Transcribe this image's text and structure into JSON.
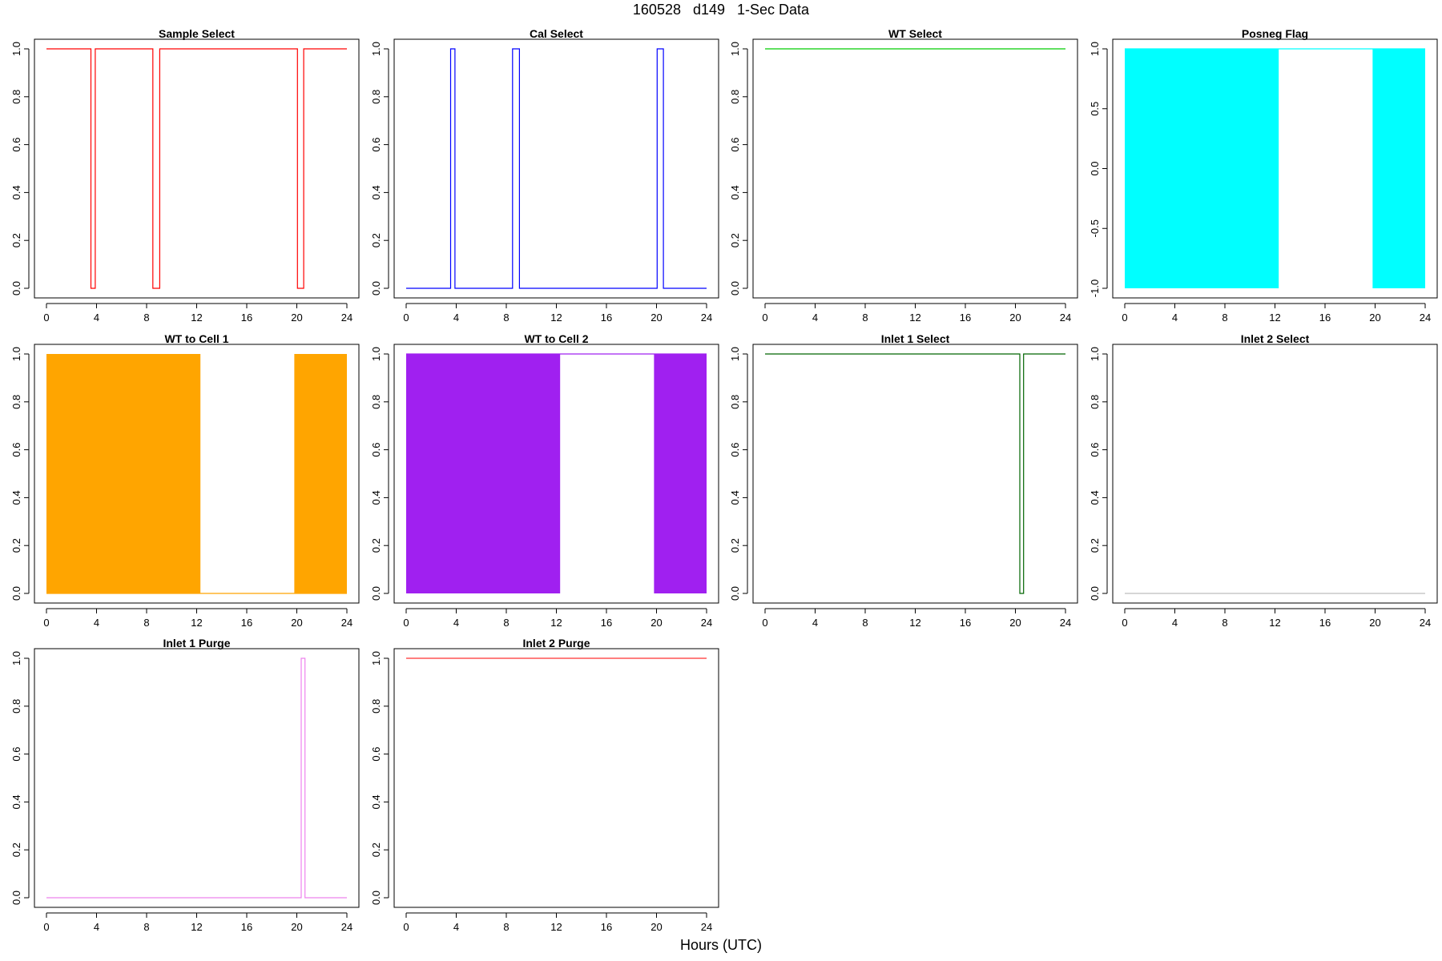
{
  "figure": {
    "title": "160528   d149   1-Sec Data",
    "xlabel": "Hours (UTC)"
  },
  "chart_data": [
    {
      "type": "line",
      "title": "Sample Select",
      "color": "#ff0000",
      "fill": false,
      "xlim": [
        0,
        24
      ],
      "ylim": [
        0,
        1
      ],
      "yticks": [
        0,
        0.2,
        0.4,
        0.6,
        0.8,
        1
      ],
      "yticklabels": [
        "0.0",
        "0.2",
        "0.4",
        "0.6",
        "0.8",
        "1.0"
      ],
      "xticks": [
        0,
        4,
        8,
        12,
        16,
        20,
        24
      ],
      "x": [
        0,
        3.55,
        3.55,
        3.9,
        3.9,
        8.5,
        8.5,
        9.05,
        9.05,
        20.05,
        20.05,
        20.55,
        20.55,
        24
      ],
      "y": [
        1,
        1,
        0,
        0,
        1,
        1,
        0,
        0,
        1,
        1,
        0,
        0,
        1,
        1
      ]
    },
    {
      "type": "line",
      "title": "Cal Select",
      "color": "#0000ff",
      "fill": false,
      "xlim": [
        0,
        24
      ],
      "ylim": [
        0,
        1
      ],
      "yticks": [
        0,
        0.2,
        0.4,
        0.6,
        0.8,
        1
      ],
      "yticklabels": [
        "0.0",
        "0.2",
        "0.4",
        "0.6",
        "0.8",
        "1.0"
      ],
      "xticks": [
        0,
        4,
        8,
        12,
        16,
        20,
        24
      ],
      "x": [
        0,
        3.55,
        3.55,
        3.9,
        3.9,
        8.5,
        8.5,
        9.05,
        9.05,
        20.05,
        20.05,
        20.55,
        20.55,
        24
      ],
      "y": [
        0,
        0,
        1,
        1,
        0,
        0,
        1,
        1,
        0,
        0,
        1,
        1,
        0,
        0
      ]
    },
    {
      "type": "line",
      "title": "WT Select",
      "color": "#00cd00",
      "fill": false,
      "xlim": [
        0,
        24
      ],
      "ylim": [
        0,
        1
      ],
      "yticks": [
        0,
        0.2,
        0.4,
        0.6,
        0.8,
        1
      ],
      "yticklabels": [
        "0.0",
        "0.2",
        "0.4",
        "0.6",
        "0.8",
        "1.0"
      ],
      "xticks": [
        0,
        4,
        8,
        12,
        16,
        20,
        24
      ],
      "x": [
        0,
        24
      ],
      "y": [
        1,
        1
      ]
    },
    {
      "type": "area",
      "title": "Posneg Flag",
      "color": "#00ffff",
      "fill": true,
      "xlim": [
        0,
        24
      ],
      "ylim": [
        -1,
        1
      ],
      "yticks": [
        -1,
        -0.5,
        0,
        0.5,
        1
      ],
      "yticklabels": [
        "-1.0",
        "-0.5",
        "0.0",
        "0.5",
        "1.0"
      ],
      "xticks": [
        0,
        4,
        8,
        12,
        16,
        20,
        24
      ],
      "fill_intervals": [
        [
          0,
          12.3
        ],
        [
          19.8,
          24
        ]
      ],
      "baseline": -1,
      "top": 1,
      "x": [
        0,
        24
      ],
      "y": [
        1,
        1
      ]
    },
    {
      "type": "area",
      "title": "WT to Cell 1",
      "color": "#ffa500",
      "fill": true,
      "xlim": [
        0,
        24
      ],
      "ylim": [
        0,
        1
      ],
      "yticks": [
        0,
        0.2,
        0.4,
        0.6,
        0.8,
        1
      ],
      "yticklabels": [
        "0.0",
        "0.2",
        "0.4",
        "0.6",
        "0.8",
        "1.0"
      ],
      "xticks": [
        0,
        4,
        8,
        12,
        16,
        20,
        24
      ],
      "fill_intervals": [
        [
          0,
          12.3
        ],
        [
          19.8,
          24
        ]
      ],
      "baseline": 0,
      "top": 1,
      "x": [
        0,
        24
      ],
      "y": [
        0,
        0
      ]
    },
    {
      "type": "area",
      "title": "WT to Cell 2",
      "color": "#a020f0",
      "fill": true,
      "xlim": [
        0,
        24
      ],
      "ylim": [
        0,
        1
      ],
      "yticks": [
        0,
        0.2,
        0.4,
        0.6,
        0.8,
        1
      ],
      "yticklabels": [
        "0.0",
        "0.2",
        "0.4",
        "0.6",
        "0.8",
        "1.0"
      ],
      "xticks": [
        0,
        4,
        8,
        12,
        16,
        20,
        24
      ],
      "fill_intervals": [
        [
          0,
          12.3
        ],
        [
          19.8,
          24
        ]
      ],
      "baseline": 0,
      "top": 1,
      "x": [
        0,
        24
      ],
      "y": [
        1,
        1
      ]
    },
    {
      "type": "line",
      "title": "Inlet 1 Select",
      "color": "#006400",
      "fill": false,
      "xlim": [
        0,
        24
      ],
      "ylim": [
        0,
        1
      ],
      "yticks": [
        0,
        0.2,
        0.4,
        0.6,
        0.8,
        1
      ],
      "yticklabels": [
        "0.0",
        "0.2",
        "0.4",
        "0.6",
        "0.8",
        "1.0"
      ],
      "xticks": [
        0,
        4,
        8,
        12,
        16,
        20,
        24
      ],
      "x": [
        0,
        20.35,
        20.35,
        20.65,
        20.65,
        24
      ],
      "y": [
        1,
        1,
        0,
        0,
        1,
        1
      ]
    },
    {
      "type": "line",
      "title": "Inlet 2 Select",
      "color": "#bebebe",
      "fill": false,
      "xlim": [
        0,
        24
      ],
      "ylim": [
        0,
        1
      ],
      "yticks": [
        0,
        0.2,
        0.4,
        0.6,
        0.8,
        1
      ],
      "yticklabels": [
        "0.0",
        "0.2",
        "0.4",
        "0.6",
        "0.8",
        "1.0"
      ],
      "xticks": [
        0,
        4,
        8,
        12,
        16,
        20,
        24
      ],
      "x": [
        0,
        24
      ],
      "y": [
        0,
        0
      ]
    },
    {
      "type": "line",
      "title": "Inlet 1 Purge",
      "color": "#ee82ee",
      "fill": false,
      "xlim": [
        0,
        24
      ],
      "ylim": [
        0,
        1
      ],
      "yticks": [
        0,
        0.2,
        0.4,
        0.6,
        0.8,
        1
      ],
      "yticklabels": [
        "0.0",
        "0.2",
        "0.4",
        "0.6",
        "0.8",
        "1.0"
      ],
      "xticks": [
        0,
        4,
        8,
        12,
        16,
        20,
        24
      ],
      "x": [
        0,
        20.35,
        20.35,
        20.65,
        20.65,
        24
      ],
      "y": [
        0,
        0,
        1,
        1,
        0,
        0
      ]
    },
    {
      "type": "line",
      "title": "Inlet 2 Purge",
      "color": "#ff3030",
      "fill": false,
      "xlim": [
        0,
        24
      ],
      "ylim": [
        0,
        1
      ],
      "yticks": [
        0,
        0.2,
        0.4,
        0.6,
        0.8,
        1
      ],
      "yticklabels": [
        "0.0",
        "0.2",
        "0.4",
        "0.6",
        "0.8",
        "1.0"
      ],
      "xticks": [
        0,
        4,
        8,
        12,
        16,
        20,
        24
      ],
      "x": [
        0,
        24
      ],
      "y": [
        1,
        1
      ]
    }
  ]
}
